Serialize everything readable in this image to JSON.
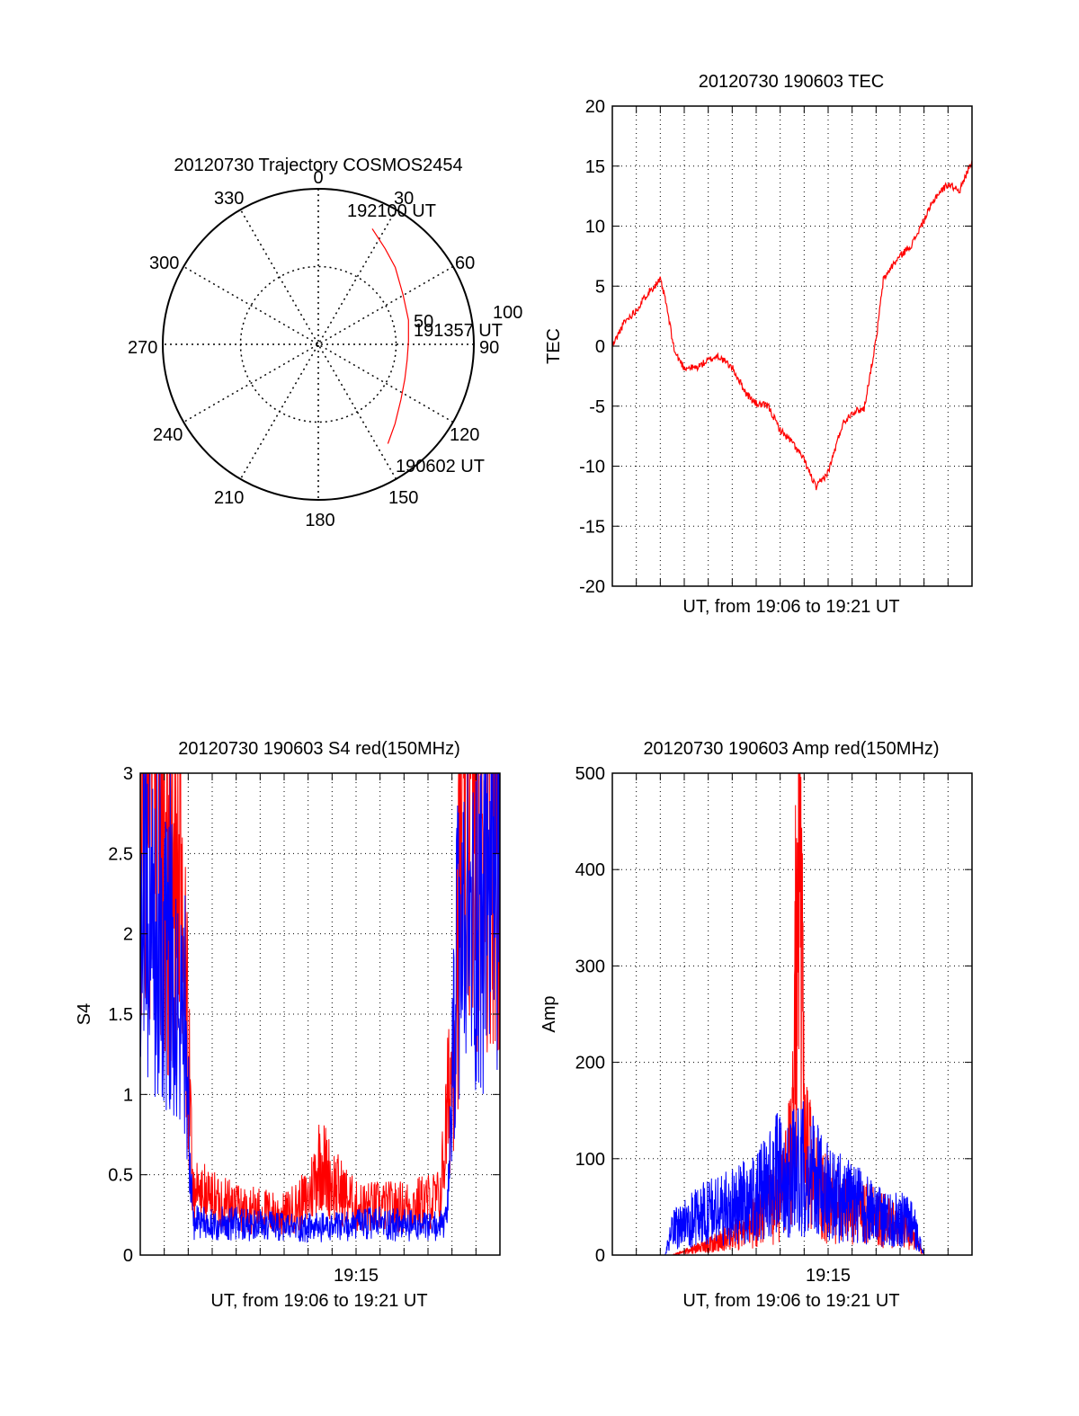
{
  "colors": {
    "red": "#ff0000",
    "blue": "#0000ff",
    "axis": "#000000",
    "grid": "#000000"
  },
  "chart_data": [
    {
      "type": "polar",
      "title": "20120730 Trajectory COSMOS2454",
      "angle_labels": [
        "0",
        "30",
        "60",
        "90",
        "120",
        "150",
        "180",
        "210",
        "240",
        "270",
        "300",
        "330"
      ],
      "radial_labels": [
        "50",
        "100"
      ],
      "rlim": [
        0,
        100
      ],
      "grid": true,
      "series": [
        {
          "color": "#ff0000",
          "points": [
            {
              "az": 25,
              "r": 82
            },
            {
              "az": 35,
              "r": 75
            },
            {
              "az": 45,
              "r": 70
            },
            {
              "az": 60,
              "r": 63
            },
            {
              "az": 75,
              "r": 60
            },
            {
              "az": 88,
              "r": 58
            },
            {
              "az": 100,
              "r": 58
            },
            {
              "az": 112,
              "r": 60
            },
            {
              "az": 124,
              "r": 64
            },
            {
              "az": 136,
              "r": 71
            },
            {
              "az": 145,
              "r": 78
            }
          ]
        }
      ],
      "annotations": [
        "192100 UT",
        "191357 UT",
        "190602 UT"
      ]
    },
    {
      "type": "line",
      "title": "20120730 190603 TEC",
      "xlabel": "UT, from 19:06 to 19:21 UT",
      "ylabel": "TEC",
      "xlim": [
        0,
        15
      ],
      "ylim": [
        -20,
        20
      ],
      "yticks": [
        "20",
        "15",
        "10",
        "5",
        "0",
        "-5",
        "-10",
        "-15",
        "-20"
      ],
      "grid": true,
      "series": [
        {
          "color": "#ff0000",
          "x": [
            0,
            0.5,
            1.0,
            1.5,
            2.0,
            2.2,
            2.6,
            3.0,
            3.5,
            4.0,
            4.4,
            5.0,
            5.6,
            6.0,
            6.5,
            7.0,
            7.5,
            8.0,
            8.5,
            9.0,
            9.3,
            9.6,
            10.0,
            10.5,
            11.0,
            11.3,
            11.6,
            12.0,
            12.5,
            13.0,
            13.5,
            14.0,
            14.5,
            15.0
          ],
          "values": [
            0,
            2,
            3,
            4.5,
            5.5,
            4.0,
            -0.5,
            -1.8,
            -1.8,
            -1.2,
            -0.8,
            -1.8,
            -4.0,
            -4.8,
            -5.0,
            -7.0,
            -8.0,
            -9.5,
            -11.8,
            -10.5,
            -8.5,
            -6.5,
            -5.5,
            -5.2,
            0.5,
            5.5,
            6.5,
            7.5,
            8.5,
            10.5,
            12.5,
            13.5,
            13.0,
            15.5
          ]
        }
      ]
    },
    {
      "type": "line",
      "title": "20120730 190603 S4 red(150MHz)",
      "xlabel": "UT, from 19:06 to 19:21 UT",
      "ylabel": "S4",
      "xlim": [
        0,
        15
      ],
      "ylim": [
        0,
        3
      ],
      "xticks": [
        "19:15"
      ],
      "yticks": [
        "3",
        "2.5",
        "2",
        "1.5",
        "1",
        "0.5",
        "0"
      ],
      "grid": true,
      "series": [
        {
          "color": "#ff0000",
          "x": [
            0,
            1.0,
            1.8,
            2.2,
            4.0,
            6.0,
            7.0,
            7.5,
            8.0,
            9.0,
            11.0,
            12.5,
            13.0,
            13.5,
            15.0
          ],
          "values": [
            3.0,
            2.6,
            2.0,
            0.4,
            0.3,
            0.25,
            0.35,
            0.6,
            0.45,
            0.3,
            0.3,
            0.35,
            1.2,
            2.8,
            2.8
          ]
        },
        {
          "color": "#0000ff",
          "x": [
            0,
            1.0,
            1.8,
            2.2,
            4.0,
            6.0,
            8.0,
            10.0,
            12.0,
            12.8,
            13.2,
            15.0
          ],
          "values": [
            2.1,
            2.0,
            1.8,
            0.2,
            0.2,
            0.17,
            0.17,
            0.2,
            0.17,
            0.2,
            1.8,
            2.5
          ]
        }
      ]
    },
    {
      "type": "line",
      "title": "20120730 190603 Amp red(150MHz)",
      "xlabel": "UT, from 19:06 to 19:21 UT",
      "ylabel": "Amp",
      "xlim": [
        0,
        15
      ],
      "ylim": [
        0,
        500
      ],
      "xticks": [
        "19:15"
      ],
      "yticks": [
        "500",
        "400",
        "300",
        "200",
        "100",
        "0"
      ],
      "grid": true,
      "series": [
        {
          "color": "#ff0000",
          "x": [
            0,
            2.5,
            4.0,
            5.5,
            7.0,
            7.5,
            7.8,
            8.0,
            8.5,
            9.5,
            11.0,
            12.5,
            13.0,
            15.0
          ],
          "values": [
            0,
            0,
            10,
            25,
            60,
            100,
            465,
            110,
            70,
            45,
            40,
            20,
            0,
            0
          ]
        },
        {
          "color": "#0000ff",
          "x": [
            0,
            2.2,
            2.5,
            3.5,
            5.0,
            6.0,
            7.0,
            8.0,
            9.0,
            10.0,
            11.0,
            12.5,
            13.0,
            15.0
          ],
          "values": [
            0,
            0,
            25,
            40,
            50,
            60,
            85,
            90,
            65,
            55,
            40,
            35,
            0,
            0
          ]
        }
      ]
    }
  ]
}
